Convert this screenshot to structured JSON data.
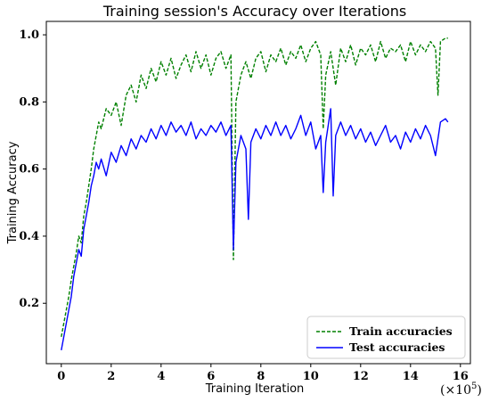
{
  "chart_data": {
    "type": "line",
    "title": "Training session's Accuracy over Iterations",
    "xlabel": "Training Iteration",
    "ylabel": "Training Accuracy",
    "x_offset_label": "(×10",
    "x_offset_exp": "5",
    "x_offset_close": ")",
    "xlim": [
      -0.6,
      16.4
    ],
    "ylim": [
      0.02,
      1.04
    ],
    "xticks": [
      0,
      2,
      4,
      6,
      8,
      10,
      12,
      14,
      16
    ],
    "xtick_labels": [
      "0",
      "2",
      "4",
      "6",
      "8",
      "10",
      "12",
      "14",
      "16"
    ],
    "yticks": [
      0.2,
      0.4,
      0.6,
      0.8,
      1.0
    ],
    "ytick_labels": [
      "0.2",
      "0.4",
      "0.6",
      "0.8",
      "1.0"
    ],
    "grid": false,
    "legend_position": "bottom-right",
    "series": [
      {
        "name": "Train accuracies",
        "color": "#008000",
        "style": "dashed",
        "points": [
          [
            0.0,
            0.1
          ],
          [
            0.1,
            0.14
          ],
          [
            0.2,
            0.18
          ],
          [
            0.3,
            0.22
          ],
          [
            0.4,
            0.27
          ],
          [
            0.5,
            0.31
          ],
          [
            0.6,
            0.35
          ],
          [
            0.7,
            0.4
          ],
          [
            0.8,
            0.38
          ],
          [
            0.9,
            0.46
          ],
          [
            1.0,
            0.5
          ],
          [
            1.1,
            0.55
          ],
          [
            1.2,
            0.6
          ],
          [
            1.3,
            0.66
          ],
          [
            1.4,
            0.7
          ],
          [
            1.5,
            0.74
          ],
          [
            1.6,
            0.72
          ],
          [
            1.8,
            0.78
          ],
          [
            2.0,
            0.76
          ],
          [
            2.2,
            0.8
          ],
          [
            2.4,
            0.73
          ],
          [
            2.6,
            0.82
          ],
          [
            2.8,
            0.85
          ],
          [
            3.0,
            0.8
          ],
          [
            3.2,
            0.88
          ],
          [
            3.4,
            0.84
          ],
          [
            3.6,
            0.9
          ],
          [
            3.8,
            0.86
          ],
          [
            4.0,
            0.92
          ],
          [
            4.2,
            0.88
          ],
          [
            4.4,
            0.93
          ],
          [
            4.6,
            0.87
          ],
          [
            4.8,
            0.91
          ],
          [
            5.0,
            0.94
          ],
          [
            5.2,
            0.89
          ],
          [
            5.4,
            0.95
          ],
          [
            5.6,
            0.9
          ],
          [
            5.8,
            0.94
          ],
          [
            6.0,
            0.88
          ],
          [
            6.2,
            0.93
          ],
          [
            6.4,
            0.95
          ],
          [
            6.6,
            0.9
          ],
          [
            6.8,
            0.94
          ],
          [
            6.9,
            0.33
          ],
          [
            7.0,
            0.8
          ],
          [
            7.2,
            0.88
          ],
          [
            7.4,
            0.92
          ],
          [
            7.6,
            0.87
          ],
          [
            7.8,
            0.93
          ],
          [
            8.0,
            0.95
          ],
          [
            8.2,
            0.89
          ],
          [
            8.4,
            0.94
          ],
          [
            8.6,
            0.92
          ],
          [
            8.8,
            0.96
          ],
          [
            9.0,
            0.91
          ],
          [
            9.2,
            0.95
          ],
          [
            9.4,
            0.93
          ],
          [
            9.6,
            0.97
          ],
          [
            9.8,
            0.92
          ],
          [
            10.0,
            0.96
          ],
          [
            10.2,
            0.98
          ],
          [
            10.4,
            0.94
          ],
          [
            10.5,
            0.72
          ],
          [
            10.6,
            0.88
          ],
          [
            10.8,
            0.95
          ],
          [
            11.0,
            0.85
          ],
          [
            11.2,
            0.96
          ],
          [
            11.4,
            0.92
          ],
          [
            11.6,
            0.97
          ],
          [
            11.8,
            0.91
          ],
          [
            12.0,
            0.96
          ],
          [
            12.2,
            0.94
          ],
          [
            12.4,
            0.97
          ],
          [
            12.6,
            0.92
          ],
          [
            12.8,
            0.98
          ],
          [
            13.0,
            0.93
          ],
          [
            13.2,
            0.96
          ],
          [
            13.4,
            0.95
          ],
          [
            13.6,
            0.97
          ],
          [
            13.8,
            0.92
          ],
          [
            14.0,
            0.98
          ],
          [
            14.2,
            0.94
          ],
          [
            14.4,
            0.97
          ],
          [
            14.6,
            0.95
          ],
          [
            14.8,
            0.98
          ],
          [
            15.0,
            0.96
          ],
          [
            15.1,
            0.82
          ],
          [
            15.2,
            0.98
          ],
          [
            15.4,
            0.99
          ],
          [
            15.5,
            0.99
          ]
        ]
      },
      {
        "name": "Test accuracies",
        "color": "#0000ff",
        "style": "solid",
        "points": [
          [
            0.0,
            0.06
          ],
          [
            0.1,
            0.1
          ],
          [
            0.2,
            0.14
          ],
          [
            0.3,
            0.18
          ],
          [
            0.4,
            0.22
          ],
          [
            0.5,
            0.28
          ],
          [
            0.6,
            0.32
          ],
          [
            0.7,
            0.36
          ],
          [
            0.8,
            0.34
          ],
          [
            0.9,
            0.42
          ],
          [
            1.0,
            0.46
          ],
          [
            1.1,
            0.5
          ],
          [
            1.2,
            0.55
          ],
          [
            1.3,
            0.58
          ],
          [
            1.4,
            0.62
          ],
          [
            1.5,
            0.6
          ],
          [
            1.6,
            0.63
          ],
          [
            1.8,
            0.58
          ],
          [
            2.0,
            0.65
          ],
          [
            2.2,
            0.62
          ],
          [
            2.4,
            0.67
          ],
          [
            2.6,
            0.64
          ],
          [
            2.8,
            0.69
          ],
          [
            3.0,
            0.66
          ],
          [
            3.2,
            0.7
          ],
          [
            3.4,
            0.68
          ],
          [
            3.6,
            0.72
          ],
          [
            3.8,
            0.69
          ],
          [
            4.0,
            0.73
          ],
          [
            4.2,
            0.7
          ],
          [
            4.4,
            0.74
          ],
          [
            4.6,
            0.71
          ],
          [
            4.8,
            0.73
          ],
          [
            5.0,
            0.7
          ],
          [
            5.2,
            0.74
          ],
          [
            5.4,
            0.69
          ],
          [
            5.6,
            0.72
          ],
          [
            5.8,
            0.7
          ],
          [
            6.0,
            0.73
          ],
          [
            6.2,
            0.71
          ],
          [
            6.4,
            0.74
          ],
          [
            6.6,
            0.7
          ],
          [
            6.8,
            0.73
          ],
          [
            6.9,
            0.36
          ],
          [
            7.0,
            0.62
          ],
          [
            7.2,
            0.7
          ],
          [
            7.4,
            0.66
          ],
          [
            7.5,
            0.45
          ],
          [
            7.6,
            0.68
          ],
          [
            7.8,
            0.72
          ],
          [
            8.0,
            0.69
          ],
          [
            8.2,
            0.73
          ],
          [
            8.4,
            0.7
          ],
          [
            8.6,
            0.74
          ],
          [
            8.8,
            0.7
          ],
          [
            9.0,
            0.73
          ],
          [
            9.2,
            0.69
          ],
          [
            9.4,
            0.72
          ],
          [
            9.6,
            0.76
          ],
          [
            9.8,
            0.7
          ],
          [
            10.0,
            0.74
          ],
          [
            10.2,
            0.66
          ],
          [
            10.4,
            0.7
          ],
          [
            10.5,
            0.53
          ],
          [
            10.6,
            0.68
          ],
          [
            10.8,
            0.78
          ],
          [
            10.9,
            0.52
          ],
          [
            11.0,
            0.7
          ],
          [
            11.2,
            0.74
          ],
          [
            11.4,
            0.7
          ],
          [
            11.6,
            0.73
          ],
          [
            11.8,
            0.69
          ],
          [
            12.0,
            0.72
          ],
          [
            12.2,
            0.68
          ],
          [
            12.4,
            0.71
          ],
          [
            12.6,
            0.67
          ],
          [
            12.8,
            0.7
          ],
          [
            13.0,
            0.73
          ],
          [
            13.2,
            0.68
          ],
          [
            13.4,
            0.7
          ],
          [
            13.6,
            0.66
          ],
          [
            13.8,
            0.71
          ],
          [
            14.0,
            0.68
          ],
          [
            14.2,
            0.72
          ],
          [
            14.4,
            0.69
          ],
          [
            14.6,
            0.73
          ],
          [
            14.8,
            0.7
          ],
          [
            15.0,
            0.64
          ],
          [
            15.2,
            0.74
          ],
          [
            15.4,
            0.75
          ],
          [
            15.5,
            0.74
          ]
        ]
      }
    ]
  }
}
